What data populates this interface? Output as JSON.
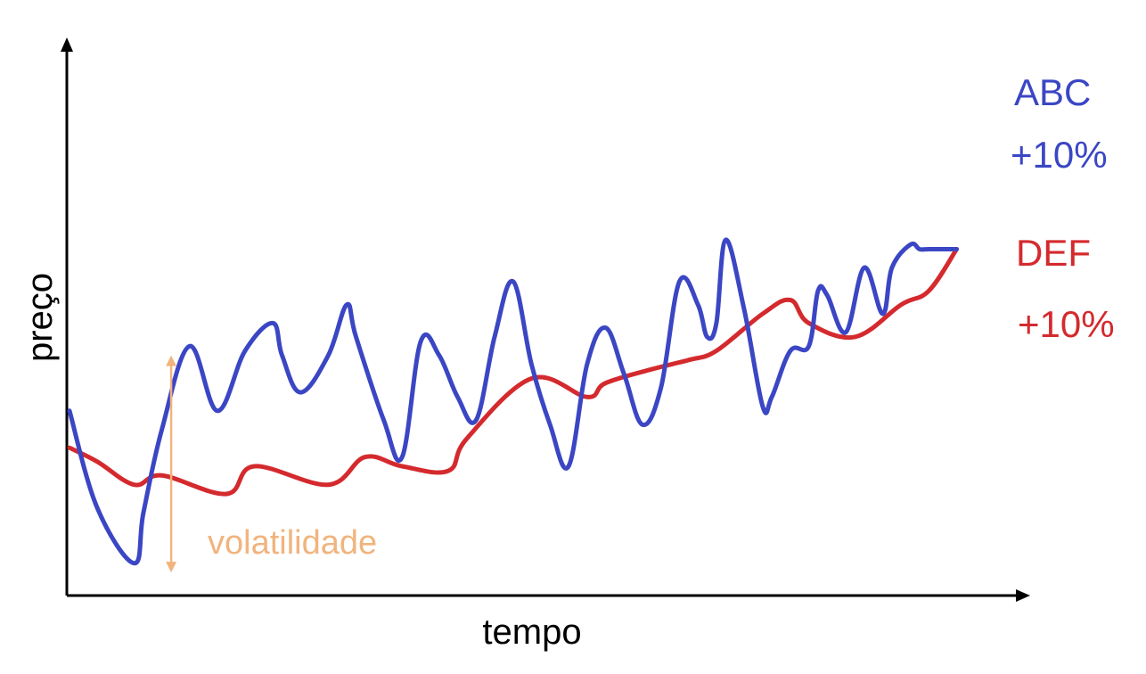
{
  "chart_data": {
    "type": "line",
    "xlabel": "tempo",
    "ylabel": "preço",
    "xlim": [
      0,
      100
    ],
    "ylim": [
      0,
      100
    ],
    "grid": false,
    "legend": "right",
    "series": [
      {
        "name": "ABC",
        "change": "+10%",
        "color": "#3b46c4",
        "points": [
          [
            0,
            40
          ],
          [
            3,
            19
          ],
          [
            7,
            7
          ],
          [
            8,
            18
          ],
          [
            10,
            36
          ],
          [
            13,
            54
          ],
          [
            16,
            40
          ],
          [
            19,
            53
          ],
          [
            22,
            59
          ],
          [
            23,
            52
          ],
          [
            25,
            44
          ],
          [
            28,
            52
          ],
          [
            30,
            63
          ],
          [
            31,
            56
          ],
          [
            34,
            38
          ],
          [
            36,
            30
          ],
          [
            38,
            55
          ],
          [
            40,
            52
          ],
          [
            42,
            43
          ],
          [
            44,
            38
          ],
          [
            46,
            56
          ],
          [
            48,
            68
          ],
          [
            50,
            50
          ],
          [
            52,
            37
          ],
          [
            54,
            28
          ],
          [
            56,
            50
          ],
          [
            58,
            58
          ],
          [
            60,
            48
          ],
          [
            62,
            37
          ],
          [
            64,
            45
          ],
          [
            66,
            68
          ],
          [
            68,
            63
          ],
          [
            69,
            56
          ],
          [
            70,
            59
          ],
          [
            71,
            77
          ],
          [
            73,
            62
          ],
          [
            75,
            41
          ],
          [
            76,
            43
          ],
          [
            78,
            53
          ],
          [
            80,
            54
          ],
          [
            81,
            66
          ],
          [
            82,
            65
          ],
          [
            84,
            57
          ],
          [
            86,
            71
          ],
          [
            88,
            61
          ],
          [
            89,
            71
          ],
          [
            91,
            76
          ],
          [
            92,
            75
          ],
          [
            93,
            75
          ],
          [
            96,
            75
          ]
        ]
      },
      {
        "name": "DEF",
        "change": "+10%",
        "color": "#d42a2e",
        "points": [
          [
            0,
            32
          ],
          [
            3,
            29
          ],
          [
            7,
            24
          ],
          [
            10,
            26
          ],
          [
            17,
            22
          ],
          [
            20,
            28
          ],
          [
            28,
            24
          ],
          [
            32,
            30
          ],
          [
            36,
            28
          ],
          [
            41,
            27
          ],
          [
            43,
            34
          ],
          [
            50,
            47
          ],
          [
            56,
            43
          ],
          [
            58,
            46
          ],
          [
            63,
            49
          ],
          [
            67,
            51
          ],
          [
            70,
            53
          ],
          [
            75,
            61
          ],
          [
            78,
            64
          ],
          [
            80,
            59
          ],
          [
            85,
            56
          ],
          [
            90,
            63
          ],
          [
            93,
            66
          ],
          [
            96,
            75
          ]
        ]
      }
    ],
    "annotations": [
      {
        "text": "volatilidade",
        "color": "#f1b47e",
        "x": 11,
        "y_from": 5,
        "y_to": 52
      }
    ]
  }
}
